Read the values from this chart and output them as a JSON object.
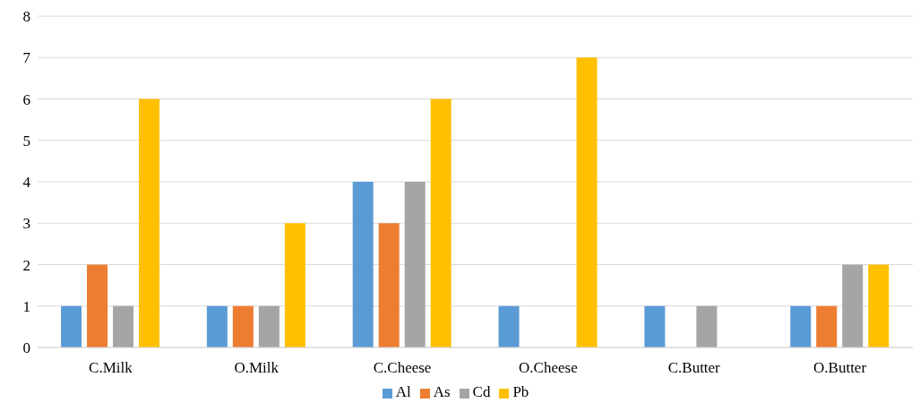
{
  "chart_data": {
    "type": "bar",
    "categories": [
      "C.Milk",
      "O.Milk",
      "C.Cheese",
      "O.Cheese",
      "C.Butter",
      "O.Butter"
    ],
    "series": [
      {
        "name": "Al",
        "color": "#5b9bd5",
        "values": [
          1,
          1,
          4,
          1,
          1,
          1
        ]
      },
      {
        "name": "As",
        "color": "#ed7d31",
        "values": [
          2,
          1,
          3,
          0,
          0,
          1
        ]
      },
      {
        "name": "Cd",
        "color": "#a5a5a5",
        "values": [
          1,
          1,
          4,
          0,
          1,
          2
        ]
      },
      {
        "name": "Pb",
        "color": "#ffc000",
        "values": [
          6,
          3,
          6,
          7,
          0,
          2
        ]
      }
    ],
    "ylim": [
      0,
      8
    ],
    "yticks": [
      0,
      1,
      2,
      3,
      4,
      5,
      6,
      7,
      8
    ],
    "grid": "y",
    "legend": "bottom"
  }
}
